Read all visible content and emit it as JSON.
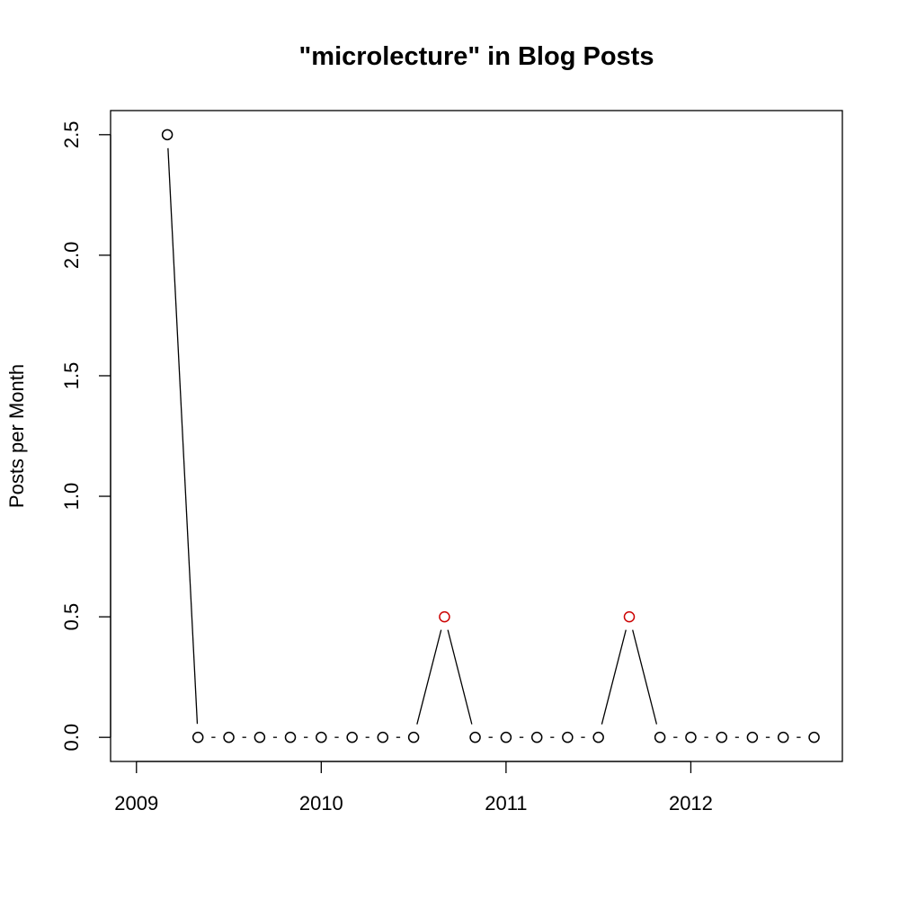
{
  "chart_data": {
    "type": "line",
    "title": "\"microlecture\" in Blog Posts",
    "xlabel": "",
    "ylabel": "Posts per Month",
    "xlim": [
      2008.86,
      2012.82
    ],
    "ylim": [
      -0.1,
      2.6
    ],
    "x_ticks": [
      2009,
      2010,
      2011,
      2012
    ],
    "x_tick_labels": [
      "2009",
      "2010",
      "2011",
      "2012"
    ],
    "y_ticks": [
      0.0,
      0.5,
      1.0,
      1.5,
      2.0,
      2.5
    ],
    "y_tick_labels": [
      "0.0",
      "0.5",
      "1.0",
      "1.5",
      "2.0",
      "2.5"
    ],
    "grid": false,
    "series": [
      {
        "line_color": "#000000",
        "marker": "open-circle",
        "x": [
          2009.167,
          2009.333,
          2009.5,
          2009.667,
          2009.833,
          2010.0,
          2010.167,
          2010.333,
          2010.5,
          2010.667,
          2010.833,
          2011.0,
          2011.167,
          2011.333,
          2011.5,
          2011.667,
          2011.833,
          2012.0,
          2012.167,
          2012.333,
          2012.5,
          2012.667
        ],
        "values": [
          2.5,
          0,
          0,
          0,
          0,
          0,
          0,
          0,
          0,
          0.5,
          0,
          0,
          0,
          0,
          0,
          0.5,
          0,
          0,
          0,
          0,
          0,
          0
        ],
        "point_colors": [
          "#000000",
          "#000000",
          "#000000",
          "#000000",
          "#000000",
          "#000000",
          "#000000",
          "#000000",
          "#000000",
          "#cc0000",
          "#000000",
          "#000000",
          "#000000",
          "#000000",
          "#000000",
          "#cc0000",
          "#000000",
          "#000000",
          "#000000",
          "#000000",
          "#000000",
          "#000000"
        ]
      }
    ]
  }
}
